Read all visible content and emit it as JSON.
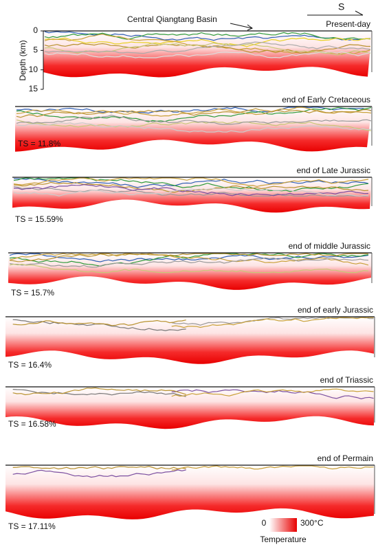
{
  "annotation": "Central Qiangtang Basin",
  "direction": "S",
  "depth_axis": {
    "label": "Depth (km)",
    "ticks": [
      0,
      5,
      10,
      15
    ]
  },
  "panels": [
    {
      "label": "Present-day"
    },
    {
      "label": "end of Early Cretaceous",
      "ts": "TS = 11.8%"
    },
    {
      "label": "end of Late Jurassic",
      "ts": "TS = 15.59%"
    },
    {
      "label": "end of middle Jurassic",
      "ts": "TS = 15.7%"
    },
    {
      "label": "end of early Jurassic",
      "ts": "TS = 16.4%"
    },
    {
      "label": "end of Triassic",
      "ts": "TS = 16.58%"
    },
    {
      "label": "end of Permain",
      "ts": "TS = 17.11%"
    }
  ],
  "colorbar": {
    "min": "0",
    "max": "300°C",
    "label": "Temperature"
  }
}
